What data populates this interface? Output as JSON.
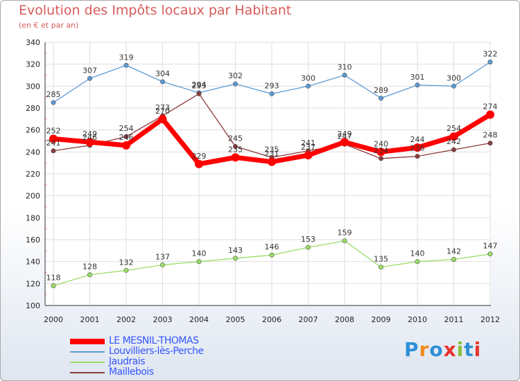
{
  "title": "Evolution des Impôts locaux par Habitant",
  "subtitle": "(en € et par an)",
  "logo": {
    "text": "Proxiti",
    "letter_colors": [
      "#2f8fd6",
      "#f08a1c",
      "#2f8fd6",
      "#e8332a",
      "#88c03a",
      "#2f8fd6",
      "#e8332a"
    ]
  },
  "chart_data": {
    "type": "line",
    "title": "Evolution des Impôts locaux par Habitant",
    "subtitle": "(en € et par an)",
    "xlabel": "",
    "ylabel": "",
    "x": [
      "2000",
      "2001",
      "2002",
      "2003",
      "2004",
      "2005",
      "2006",
      "2007",
      "2008",
      "2009",
      "2010",
      "2011",
      "2012"
    ],
    "ylim": [
      100,
      340
    ],
    "yticks": [
      100,
      120,
      140,
      160,
      180,
      200,
      220,
      240,
      260,
      280,
      300,
      320,
      340
    ],
    "grid": true,
    "legend_position": "bottom-left",
    "series": [
      {
        "name": "LE MESNIL-THOMAS",
        "color": "#ff0000",
        "values": [
          252,
          249,
          246,
          270,
          229,
          235,
          231,
          237,
          249,
          240,
          244,
          254,
          274
        ]
      },
      {
        "name": "Louvilliers-lès-Perche",
        "color": "#5b9bd5",
        "values": [
          285,
          307,
          319,
          304,
          294,
          302,
          293,
          300,
          310,
          289,
          301,
          300,
          322
        ]
      },
      {
        "name": "Jaudrais",
        "color": "#99dd66",
        "values": [
          118,
          128,
          132,
          137,
          140,
          143,
          146,
          153,
          159,
          135,
          140,
          142,
          147
        ]
      },
      {
        "name": "Maillebois",
        "color": "#8b3a3a",
        "values": [
          241,
          246,
          254,
          273,
          293,
          245,
          235,
          241,
          247,
          234,
          236,
          242,
          248
        ]
      }
    ]
  }
}
